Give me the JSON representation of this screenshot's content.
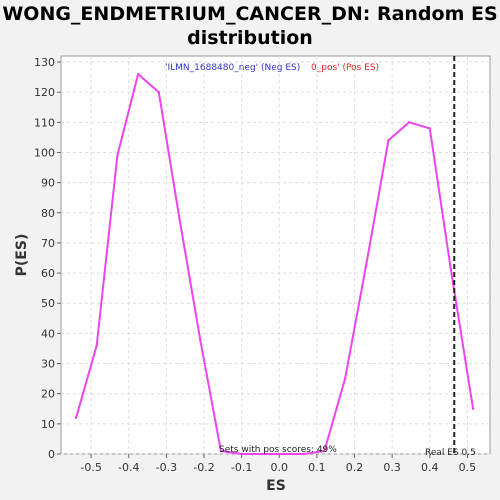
{
  "chart_data": {
    "type": "line",
    "title_line1": "WONG_ENDMETRIUM_CANCER_DN: Random ES",
    "title_line2": "distribution",
    "xlabel": "ES",
    "ylabel": "P(ES)",
    "xlim": [
      -0.58,
      0.56
    ],
    "ylim": [
      0,
      132
    ],
    "x_ticks": [
      -0.5,
      -0.4,
      -0.3,
      -0.2,
      -0.1,
      0.0,
      0.1,
      0.2,
      0.3,
      0.4,
      0.5
    ],
    "x_tick_labels": [
      "-0.5",
      "-0.4",
      "-0.3",
      "-0.2",
      "-0.1",
      "0.0",
      "0.1",
      "0.2",
      "0.3",
      "0.4",
      "0.5"
    ],
    "y_ticks": [
      0,
      10,
      20,
      30,
      40,
      50,
      60,
      70,
      80,
      90,
      100,
      110,
      120,
      130
    ],
    "y_tick_labels": [
      "0",
      "10",
      "20",
      "30",
      "40",
      "50",
      "60",
      "70",
      "80",
      "90",
      "100",
      "110",
      "120",
      "130"
    ],
    "grid": true,
    "series": [
      {
        "color": "#ee44ee",
        "x": [
          -0.54,
          -0.485,
          -0.43,
          -0.375,
          -0.32,
          -0.265,
          -0.21,
          -0.155,
          -0.1,
          -0.045,
          0.01,
          0.065,
          0.12,
          0.175,
          0.23,
          0.29,
          0.345,
          0.4,
          0.455,
          0.515
        ],
        "y": [
          12,
          36,
          99,
          126,
          120,
          78,
          38,
          1,
          0,
          0,
          0,
          0,
          1,
          25,
          62,
          104,
          110,
          108,
          62,
          15
        ]
      }
    ],
    "real_es": 0.465,
    "real_es_label": "Real ES 0.5",
    "legend_neg_label": "'ILMN_1688480_neg' (Neg ES)",
    "legend_pos_label": "0_pos' (Pos ES)",
    "legend_neg_color": "#3333cc",
    "legend_pos_color": "#dd2222",
    "bottom_annotation": "Sets with pos scores: 49%"
  }
}
